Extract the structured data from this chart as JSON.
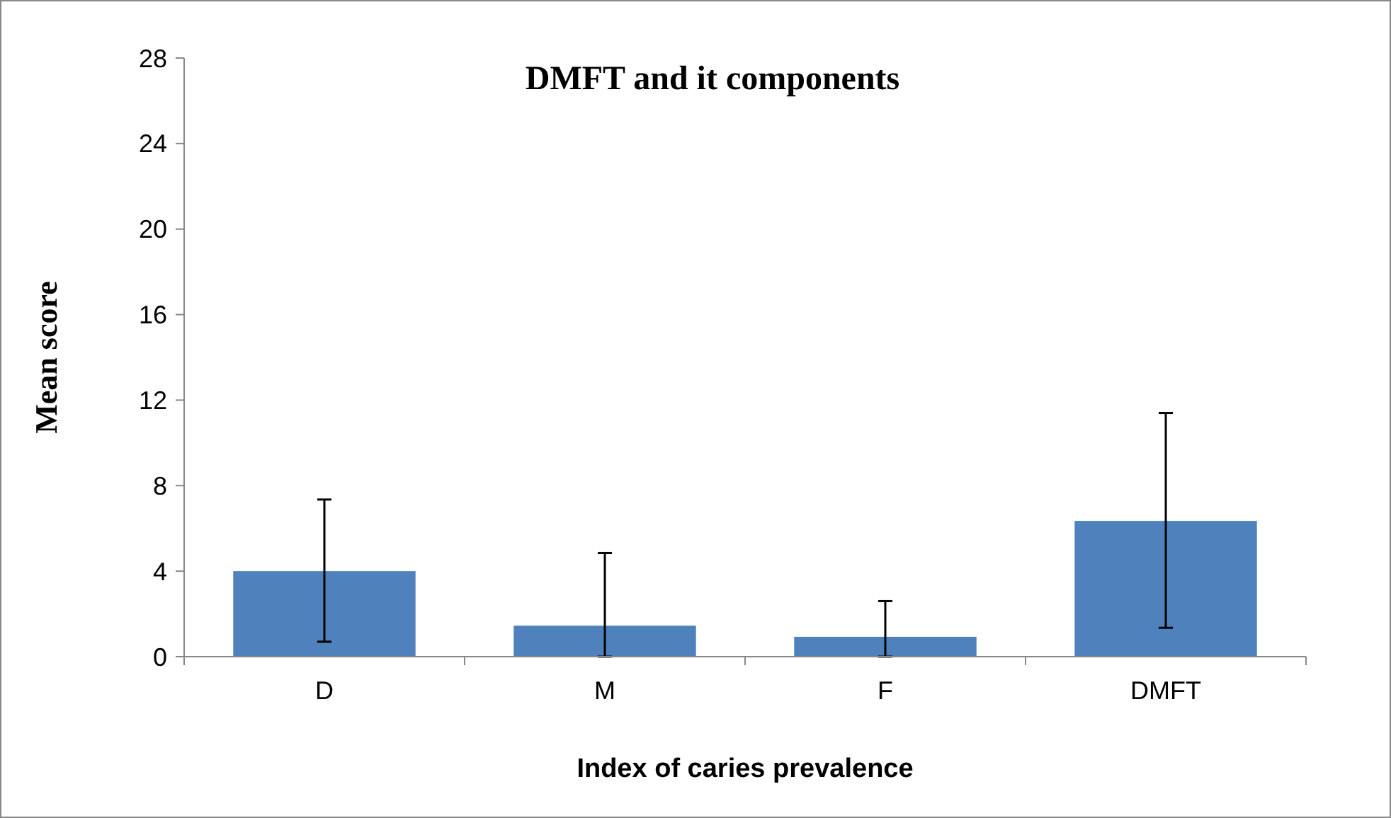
{
  "chart_data": {
    "type": "bar",
    "title": "DMFT and it components",
    "xlabel": "Index of caries prevalence",
    "ylabel": "Mean score",
    "categories": [
      "D",
      "M",
      "F",
      "DMFT"
    ],
    "values": [
      4.0,
      1.45,
      0.93,
      6.35
    ],
    "errors": [
      [
        0.7,
        7.35
      ],
      [
        0,
        4.85
      ],
      [
        0,
        2.6
      ],
      [
        1.35,
        11.4
      ]
    ],
    "color": "#4f81bd",
    "ylim": [
      0,
      28
    ],
    "yticks": [
      0,
      4,
      8,
      12,
      16,
      20,
      24,
      28
    ],
    "grid": false
  }
}
